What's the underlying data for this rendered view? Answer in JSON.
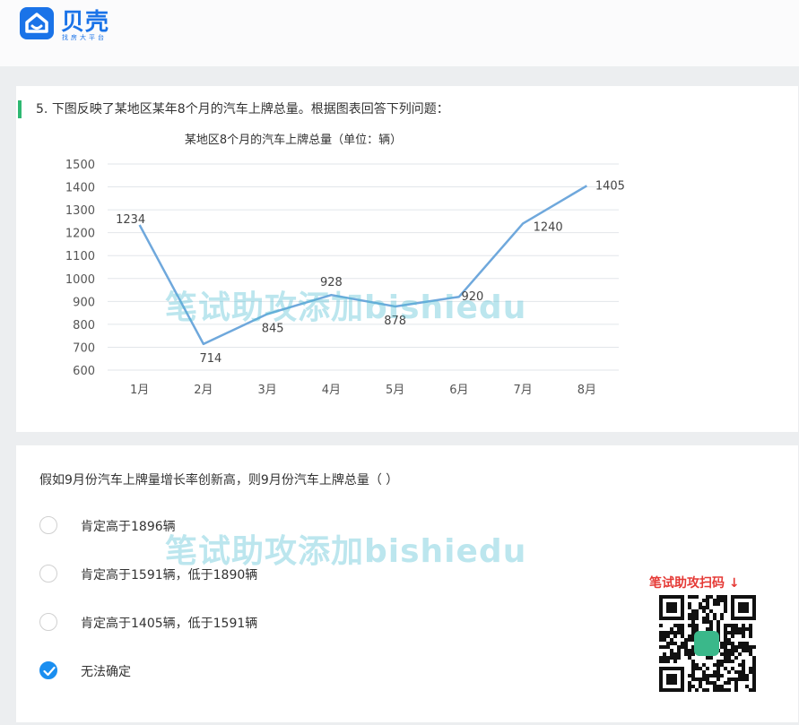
{
  "brand": {
    "name": "贝壳",
    "subtitle": "找房大平台",
    "color": "#1a73e8"
  },
  "question": {
    "number": "5.",
    "text": "下图反映了某地区某年8个月的汽车上牌总量。根据图表回答下列问题："
  },
  "chart_data": {
    "type": "line",
    "title": "某地区8个月的汽车上牌总量（单位：辆）",
    "categories": [
      "1月",
      "2月",
      "3月",
      "4月",
      "5月",
      "6月",
      "7月",
      "8月"
    ],
    "series": [
      {
        "values": [
          1234,
          714,
          845,
          928,
          878,
          920,
          1240,
          1405
        ],
        "color": "#6fa8dc"
      }
    ],
    "data_labels": [
      "1234",
      "714",
      "845",
      "928",
      "878",
      "920",
      "1240",
      "1405"
    ],
    "ylim": [
      600,
      1500
    ],
    "yticks": [
      "1500",
      "1400",
      "1300",
      "1200",
      "1100",
      "1000",
      "900",
      "800",
      "700",
      "600"
    ],
    "grid": true,
    "xlabel": "",
    "ylabel": ""
  },
  "sub_question": "假如9月份汽车上牌量增长率创新高，则9月份汽车上牌总量（ ）",
  "options": [
    {
      "label": "肯定高于1896辆",
      "selected": false
    },
    {
      "label": "肯定高于1591辆，低于1890辆",
      "selected": false
    },
    {
      "label": "肯定高于1405辆，低于1591辆",
      "selected": false
    },
    {
      "label": "无法确定",
      "selected": true
    }
  ],
  "watermark": "笔试助攻添加bishiedu",
  "promo": {
    "text": "笔试助攻扫码 ↓",
    "color": "#e53935",
    "icon": "qr-code-icon"
  }
}
